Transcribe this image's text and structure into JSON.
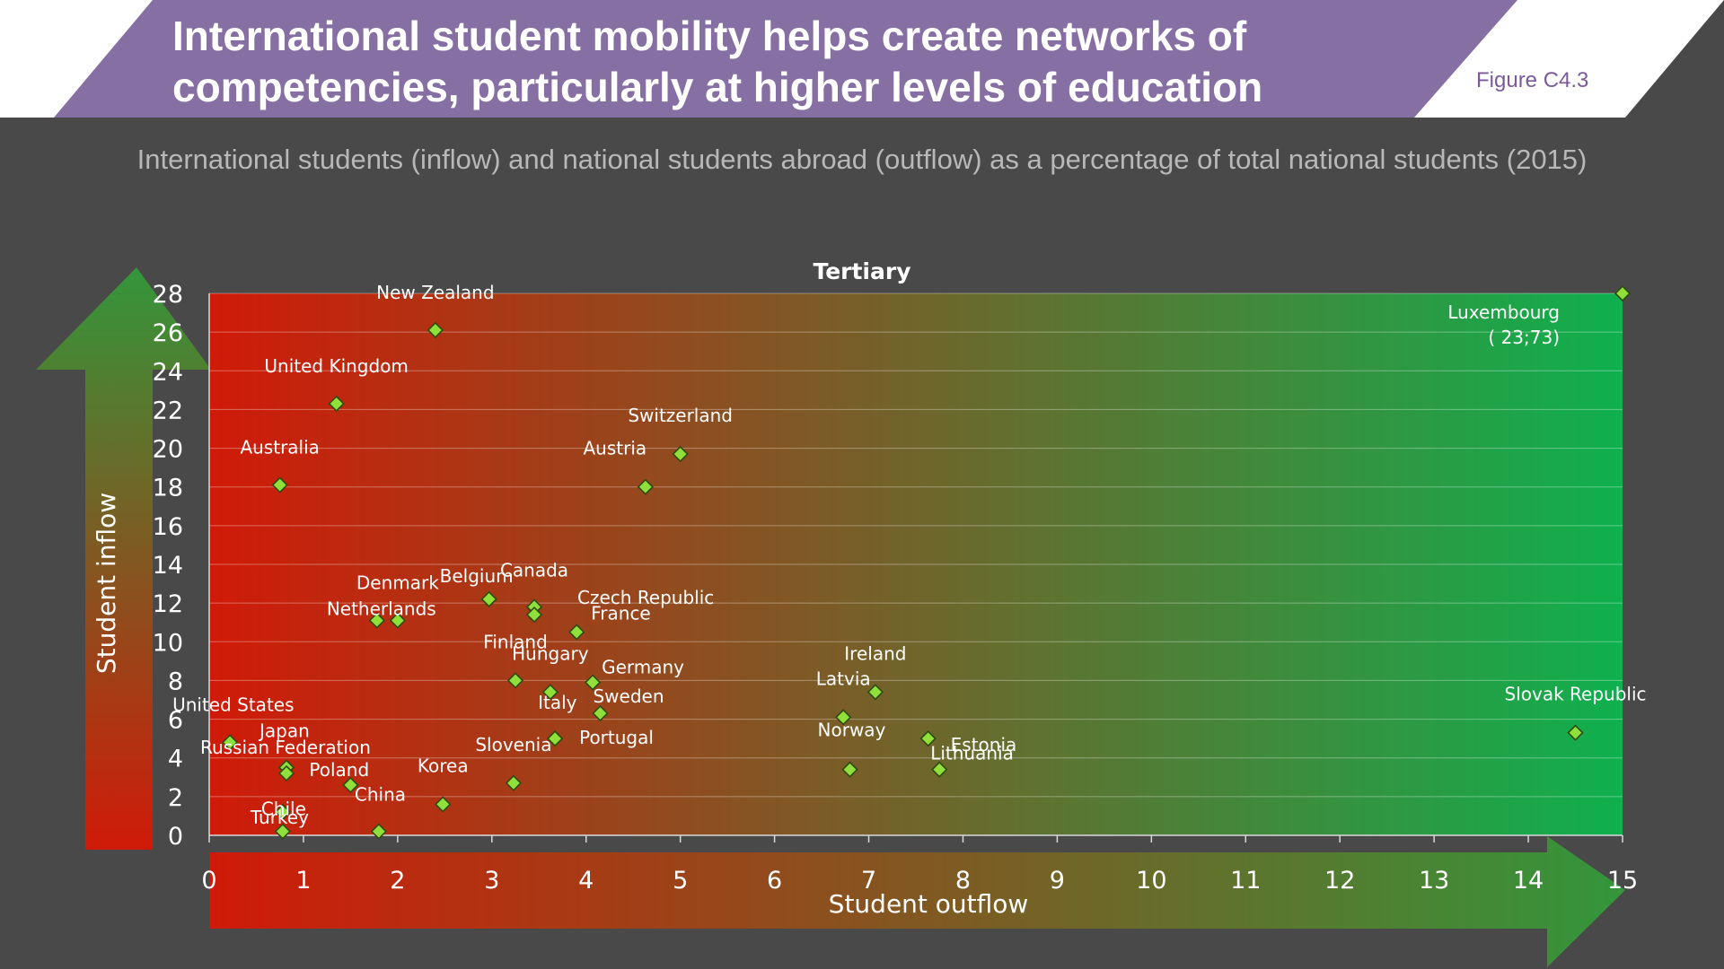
{
  "header": {
    "title": "International student mobility helps create networks of competencies, particularly at higher levels of education",
    "figure_label": "Figure C4.3",
    "subtitle": "International students (inflow) and national students abroad (outflow) as a percentage of total national students (2015)"
  },
  "colors": {
    "background": "#494949",
    "banner": "#8670a3",
    "point_fill": "#8fe03a",
    "gradient_left": "#d01a08",
    "gradient_right": "#0fb04e",
    "arrow_green": "#33963b"
  },
  "chart_data": {
    "type": "scatter",
    "title": "Tertiary",
    "xlabel": "Student outflow",
    "ylabel": "Student inflow",
    "xlim": [
      0,
      15
    ],
    "ylim": [
      0,
      28
    ],
    "xticks": [
      0,
      1,
      2,
      3,
      4,
      5,
      6,
      7,
      8,
      9,
      10,
      11,
      12,
      13,
      14,
      15
    ],
    "yticks": [
      0,
      2,
      4,
      6,
      8,
      10,
      12,
      14,
      16,
      18,
      20,
      22,
      24,
      26,
      28
    ],
    "grid": true,
    "points": [
      {
        "label": "New Zealand",
        "x": 2.4,
        "y": 26.1
      },
      {
        "label": "United Kingdom",
        "x": 1.35,
        "y": 22.3
      },
      {
        "label": "Australia",
        "x": 0.75,
        "y": 18.1
      },
      {
        "label": "Switzerland",
        "x": 5.0,
        "y": 19.7
      },
      {
        "label": "Austria",
        "x": 4.63,
        "y": 18.0
      },
      {
        "label": "Luxembourg",
        "x": 15,
        "y": 28,
        "annotation": "( 23;73)"
      },
      {
        "label": "Denmark",
        "x": 2.0,
        "y": 11.1
      },
      {
        "label": "Netherlands",
        "x": 1.78,
        "y": 11.1
      },
      {
        "label": "Belgium",
        "x": 2.97,
        "y": 12.2
      },
      {
        "label": "Canada",
        "x": 3.45,
        "y": 11.8
      },
      {
        "label": "Czech Republic",
        "x": 3.45,
        "y": 11.4
      },
      {
        "label": "France",
        "x": 3.9,
        "y": 10.5
      },
      {
        "label": "Finland",
        "x": 3.25,
        "y": 8.0
      },
      {
        "label": "Hungary",
        "x": 3.62,
        "y": 7.4
      },
      {
        "label": "Germany",
        "x": 4.07,
        "y": 7.9
      },
      {
        "label": "Italy",
        "x": 3.67,
        "y": 5.0
      },
      {
        "label": "Sweden",
        "x": 4.15,
        "y": 6.3
      },
      {
        "label": "Portugal",
        "x": 3.67,
        "y": 5.0
      },
      {
        "label": "Slovenia",
        "x": 3.23,
        "y": 2.7
      },
      {
        "label": "United States",
        "x": 0.22,
        "y": 4.8
      },
      {
        "label": "Japan",
        "x": 0.82,
        "y": 3.5
      },
      {
        "label": "Russian Federation",
        "x": 0.82,
        "y": 3.2
      },
      {
        "label": "Turkey",
        "x": 0.78,
        "y": 1.2
      },
      {
        "label": "Chile",
        "x": 0.78,
        "y": 0.2
      },
      {
        "label": "Poland",
        "x": 1.5,
        "y": 2.6
      },
      {
        "label": "China",
        "x": 1.8,
        "y": 0.2
      },
      {
        "label": "Korea",
        "x": 2.48,
        "y": 1.6
      },
      {
        "label": "Ireland",
        "x": 7.07,
        "y": 7.4
      },
      {
        "label": "Latvia",
        "x": 6.73,
        "y": 6.1
      },
      {
        "label": "Estonia",
        "x": 7.63,
        "y": 5.0
      },
      {
        "label": "Norway",
        "x": 6.8,
        "y": 3.4
      },
      {
        "label": "Lithuania",
        "x": 7.75,
        "y": 3.4
      },
      {
        "label": "Slovak Republic",
        "x": 14.5,
        "y": 5.3
      }
    ]
  }
}
